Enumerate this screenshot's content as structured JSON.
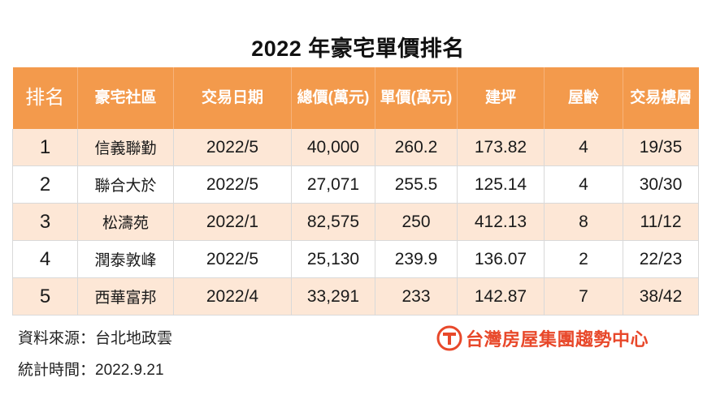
{
  "title": "2022 年豪宅單價排名",
  "chart_data": {
    "type": "table",
    "title": "2022 年豪宅單價排名",
    "columns": [
      "排名",
      "豪宅社區",
      "交易日期",
      "總價(萬元)",
      "單價(萬元)",
      "建坪",
      "屋齡",
      "交易樓層"
    ],
    "rows": [
      [
        "1",
        "信義聯勤",
        "2022/5",
        "40,000",
        "260.2",
        "173.82",
        "4",
        "19/35"
      ],
      [
        "2",
        "聯合大於",
        "2022/5",
        "27,071",
        "255.5",
        "125.14",
        "4",
        "30/30"
      ],
      [
        "3",
        "松濤苑",
        "2022/1",
        "82,575",
        "250",
        "412.13",
        "8",
        "11/12"
      ],
      [
        "4",
        "潤泰敦峰",
        "2022/5",
        "25,130",
        "239.9",
        "136.07",
        "2",
        "22/23"
      ],
      [
        "5",
        "西華富邦",
        "2022/4",
        "33,291",
        "233",
        "142.87",
        "7",
        "38/42"
      ]
    ]
  },
  "footer": {
    "source": "資料來源：台北地政雲",
    "date": "統計時間：2022.9.21"
  },
  "logo": {
    "text": "台灣房屋集團趨勢中心",
    "color": "#e8482a"
  },
  "colors": {
    "header_bg": "#f39a4c",
    "row_alt_bg": "#fde7d6"
  }
}
